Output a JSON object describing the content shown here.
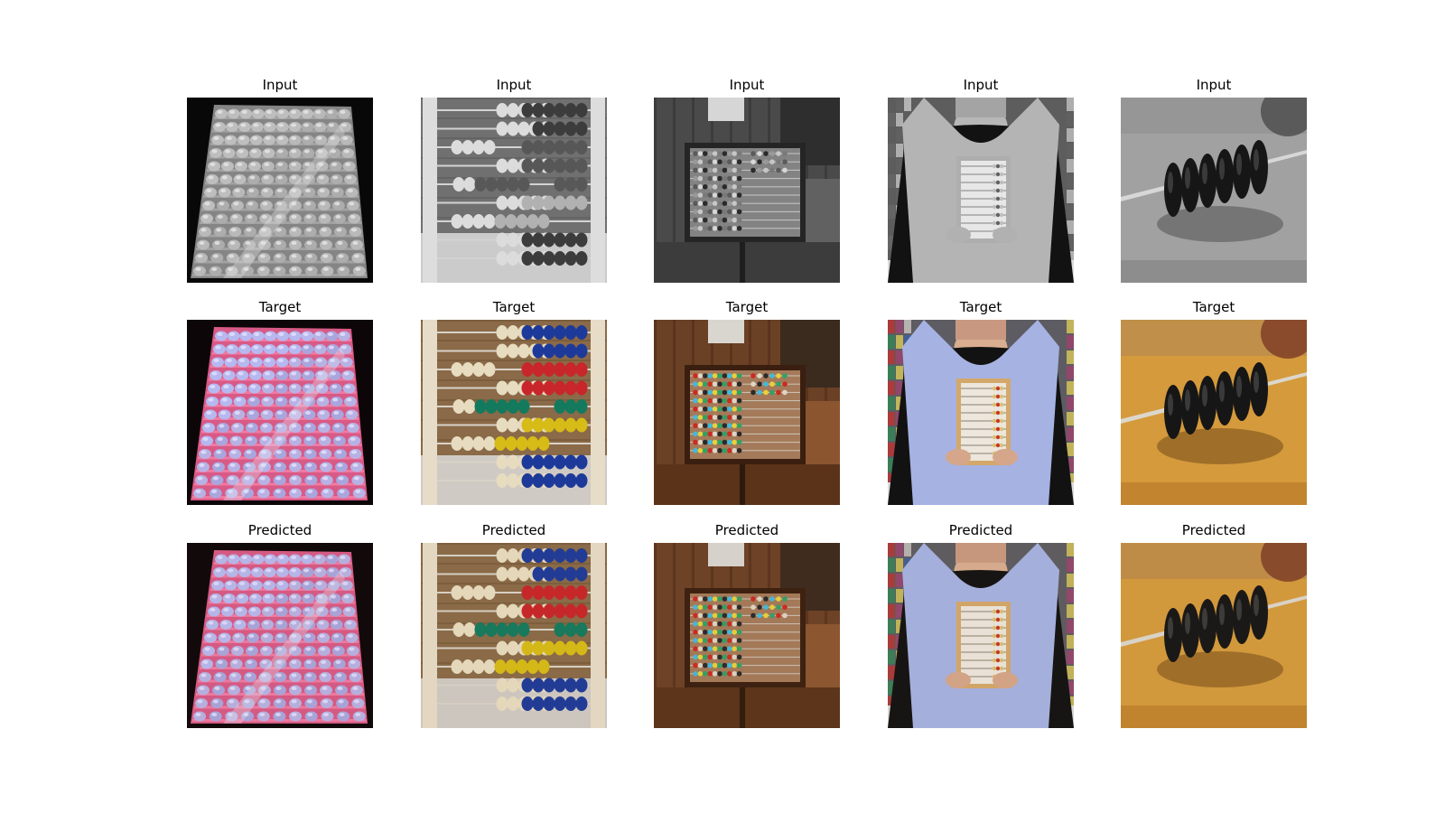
{
  "row_titles": [
    "Input",
    "Target",
    "Predicted"
  ],
  "rows": [
    {
      "title": "Input",
      "mode": "grayscale",
      "panels": [
        {
          "title": "Input",
          "scene": "abacus-3d-render"
        },
        {
          "title": "Input",
          "scene": "abacus-closeup"
        },
        {
          "title": "Input",
          "scene": "abacus-on-stand"
        },
        {
          "title": "Input",
          "scene": "woman-holding-abacus"
        },
        {
          "title": "Input",
          "scene": "abacus-bead-macro"
        }
      ]
    },
    {
      "title": "Target",
      "mode": "color",
      "panels": [
        {
          "title": "Target",
          "scene": "abacus-3d-render"
        },
        {
          "title": "Target",
          "scene": "abacus-closeup"
        },
        {
          "title": "Target",
          "scene": "abacus-on-stand"
        },
        {
          "title": "Target",
          "scene": "woman-holding-abacus"
        },
        {
          "title": "Target",
          "scene": "abacus-bead-macro"
        }
      ]
    },
    {
      "title": "Predicted",
      "mode": "color",
      "panels": [
        {
          "title": "Predicted",
          "scene": "abacus-3d-render"
        },
        {
          "title": "Predicted",
          "scene": "abacus-closeup"
        },
        {
          "title": "Predicted",
          "scene": "abacus-on-stand"
        },
        {
          "title": "Predicted",
          "scene": "woman-holding-abacus"
        },
        {
          "title": "Predicted",
          "scene": "abacus-bead-macro"
        }
      ]
    }
  ]
}
